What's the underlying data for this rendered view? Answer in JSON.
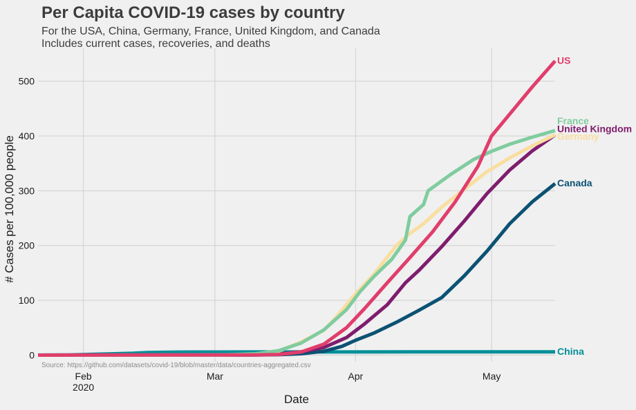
{
  "chart_data": {
    "type": "line",
    "title": "Per Capita COVID-19 cases by country",
    "subtitle_lines": [
      "For the USA, China, Germany, France, United Kingdom, and Canada",
      "Includes current cases, recoveries, and deaths"
    ],
    "xlabel": "Date",
    "ylabel": "# Cases per 100,000 people",
    "source": "Source: https://github.com/datasets/covid-19/blob/master/data/countries-aggregated.csv",
    "x_ticks": [
      {
        "date": "2020-02-01",
        "label": "Feb",
        "sublabel": "2020"
      },
      {
        "date": "2020-03-01",
        "label": "Mar",
        "sublabel": ""
      },
      {
        "date": "2020-04-01",
        "label": "Apr",
        "sublabel": ""
      },
      {
        "date": "2020-05-01",
        "label": "May",
        "sublabel": ""
      }
    ],
    "xlim": [
      "2020-01-22",
      "2020-05-15"
    ],
    "ylim": [
      -12,
      560
    ],
    "y_ticks": [
      0,
      100,
      200,
      300,
      400,
      500
    ],
    "grid": true,
    "legend": "labels at line ends",
    "series": [
      {
        "name": "China",
        "color": "#028f98",
        "label_color": "#028f98",
        "points": [
          [
            "2020-01-22",
            0.04
          ],
          [
            "2020-01-29",
            0.4
          ],
          [
            "2020-02-05",
            1.8
          ],
          [
            "2020-02-12",
            3.4
          ],
          [
            "2020-02-15",
            4.7
          ],
          [
            "2020-02-20",
            5.4
          ],
          [
            "2020-02-25",
            5.6
          ],
          [
            "2020-03-01",
            5.7
          ],
          [
            "2020-03-10",
            5.8
          ],
          [
            "2020-03-20",
            5.8
          ],
          [
            "2020-04-01",
            5.8
          ],
          [
            "2020-04-15",
            5.9
          ],
          [
            "2020-05-01",
            5.9
          ],
          [
            "2020-05-15",
            5.9
          ]
        ]
      },
      {
        "name": "Canada",
        "color": "#0b5273",
        "label_color": "#0b5273",
        "points": [
          [
            "2020-01-22",
            0
          ],
          [
            "2020-03-10",
            0.2
          ],
          [
            "2020-03-15",
            0.7
          ],
          [
            "2020-03-20",
            2.5
          ],
          [
            "2020-03-25",
            7
          ],
          [
            "2020-03-29",
            16
          ],
          [
            "2020-04-01",
            27
          ],
          [
            "2020-04-05",
            40
          ],
          [
            "2020-04-10",
            60
          ],
          [
            "2020-04-15",
            82
          ],
          [
            "2020-04-20",
            105
          ],
          [
            "2020-04-25",
            145
          ],
          [
            "2020-04-30",
            190
          ],
          [
            "2020-05-05",
            240
          ],
          [
            "2020-05-10",
            280
          ],
          [
            "2020-05-15",
            313
          ]
        ]
      },
      {
        "name": "United Kingdom",
        "color": "#7f1d6d",
        "label_color": "#7f1d6d",
        "points": [
          [
            "2020-01-22",
            0
          ],
          [
            "2020-03-10",
            0.5
          ],
          [
            "2020-03-15",
            1.8
          ],
          [
            "2020-03-20",
            6
          ],
          [
            "2020-03-25",
            14
          ],
          [
            "2020-03-30",
            32
          ],
          [
            "2020-04-03",
            57
          ],
          [
            "2020-04-08",
            92
          ],
          [
            "2020-04-12",
            132
          ],
          [
            "2020-04-15",
            155
          ],
          [
            "2020-04-20",
            198
          ],
          [
            "2020-04-25",
            245
          ],
          [
            "2020-04-30",
            295
          ],
          [
            "2020-05-05",
            338
          ],
          [
            "2020-05-10",
            373
          ],
          [
            "2020-05-15",
            402
          ]
        ]
      },
      {
        "name": "Germany",
        "color": "#f9dea0",
        "label_color": "#f9dea0",
        "points": [
          [
            "2020-01-22",
            0
          ],
          [
            "2020-03-01",
            0.2
          ],
          [
            "2020-03-05",
            0.5
          ],
          [
            "2020-03-10",
            1.5
          ],
          [
            "2020-03-15",
            7
          ],
          [
            "2020-03-20",
            24
          ],
          [
            "2020-03-25",
            45
          ],
          [
            "2020-03-28",
            72
          ],
          [
            "2020-04-01",
            112
          ],
          [
            "2020-04-05",
            147
          ],
          [
            "2020-04-10",
            200
          ],
          [
            "2020-04-13",
            222
          ],
          [
            "2020-04-16",
            240
          ],
          [
            "2020-04-20",
            270
          ],
          [
            "2020-04-25",
            303
          ],
          [
            "2020-04-30",
            335
          ],
          [
            "2020-05-05",
            360
          ],
          [
            "2020-05-10",
            382
          ],
          [
            "2020-05-15",
            402
          ]
        ]
      },
      {
        "name": "France",
        "color": "#80cc9f",
        "label_color": "#80cc9f",
        "points": [
          [
            "2020-01-22",
            0
          ],
          [
            "2020-03-01",
            0.2
          ],
          [
            "2020-03-05",
            0.8
          ],
          [
            "2020-03-10",
            2.5
          ],
          [
            "2020-03-15",
            8
          ],
          [
            "2020-03-20",
            22
          ],
          [
            "2020-03-25",
            46
          ],
          [
            "2020-03-30",
            83
          ],
          [
            "2020-04-02",
            116
          ],
          [
            "2020-04-05",
            143
          ],
          [
            "2020-04-09",
            175
          ],
          [
            "2020-04-12",
            210
          ],
          [
            "2020-04-13",
            253
          ],
          [
            "2020-04-16",
            275
          ],
          [
            "2020-04-17",
            300
          ],
          [
            "2020-04-22",
            330
          ],
          [
            "2020-04-27",
            357
          ],
          [
            "2020-05-01",
            372
          ],
          [
            "2020-05-05",
            385
          ],
          [
            "2020-05-10",
            398
          ],
          [
            "2020-05-15",
            410
          ]
        ]
      },
      {
        "name": "US",
        "color": "#e03e6c",
        "label_color": "#e03e6c",
        "points": [
          [
            "2020-01-22",
            0
          ],
          [
            "2020-03-10",
            0.3
          ],
          [
            "2020-03-15",
            1.1
          ],
          [
            "2020-03-20",
            5.7
          ],
          [
            "2020-03-25",
            20
          ],
          [
            "2020-03-30",
            50
          ],
          [
            "2020-04-03",
            85
          ],
          [
            "2020-04-08",
            132
          ],
          [
            "2020-04-13",
            178
          ],
          [
            "2020-04-18",
            225
          ],
          [
            "2020-04-23",
            280
          ],
          [
            "2020-04-28",
            345
          ],
          [
            "2020-05-01",
            400
          ],
          [
            "2020-05-05",
            440
          ],
          [
            "2020-05-10",
            490
          ],
          [
            "2020-05-15",
            537
          ]
        ]
      }
    ]
  }
}
